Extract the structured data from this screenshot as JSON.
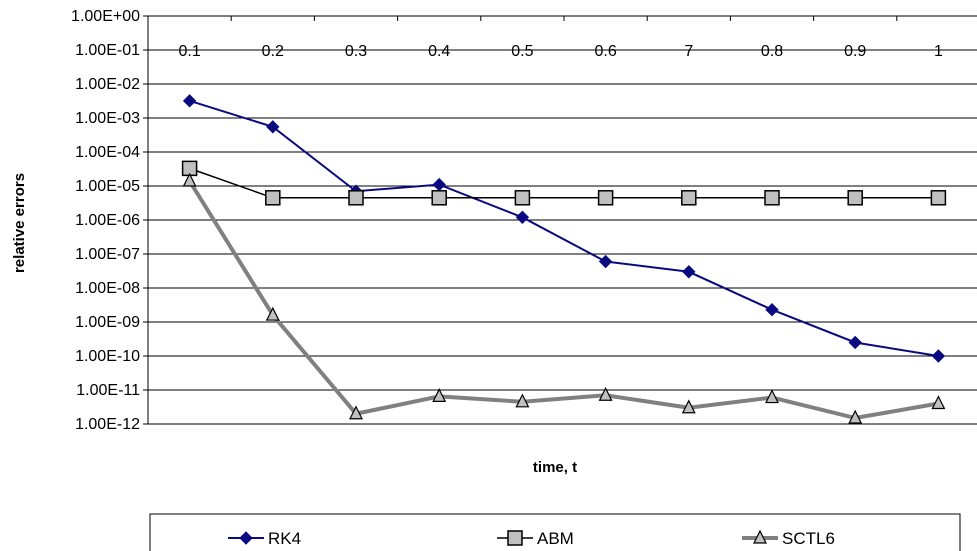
{
  "chart_data": {
    "type": "line",
    "title": "",
    "xlabel": "time, t",
    "ylabel": "relative errors",
    "yscale": "log",
    "ylim": [
      1e-12,
      1
    ],
    "y_tick_labels": [
      "1.00E+00",
      "1.00E-01",
      "1.00E-02",
      "1.00E-03",
      "1.00E-04",
      "1.00E-05",
      "1.00E-06",
      "1.00E-07",
      "1.00E-08",
      "1.00E-09",
      "1.00E-10",
      "1.00E-11",
      "1.00E-12"
    ],
    "categories": [
      "0.1",
      "0.2",
      "0.3",
      "0.4",
      "0.5",
      "0.6",
      "7",
      "0.8",
      "0.9",
      "1"
    ],
    "grid": "horizontal",
    "legend_position": "bottom",
    "series": [
      {
        "name": "RK4",
        "marker": "diamond",
        "color": "#0a0a80",
        "values": [
          0.0032,
          0.00055,
          7e-06,
          1.1e-05,
          1.2e-06,
          6e-08,
          3e-08,
          2.3e-09,
          2.5e-10,
          1e-10
        ]
      },
      {
        "name": "ABM",
        "marker": "square",
        "color": "#000000",
        "values": [
          3.3e-05,
          4.5e-06,
          4.5e-06,
          4.5e-06,
          4.5e-06,
          4.5e-06,
          4.5e-06,
          4.5e-06,
          4.5e-06,
          4.5e-06
        ]
      },
      {
        "name": "SCTL6",
        "marker": "triangle",
        "color": "#808080",
        "values": [
          1.4e-05,
          1.6e-09,
          2e-12,
          6.5e-12,
          4.5e-12,
          7e-12,
          3e-12,
          6e-12,
          1.5e-12,
          4e-12
        ]
      }
    ]
  }
}
